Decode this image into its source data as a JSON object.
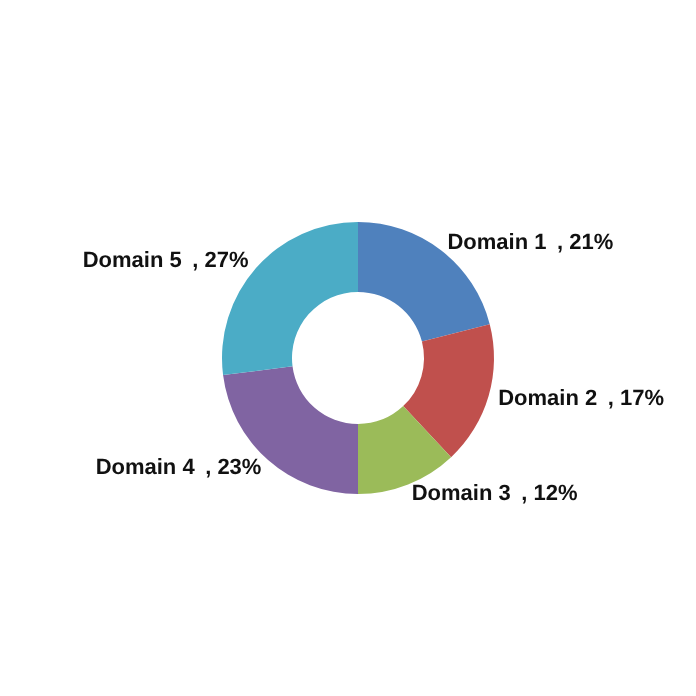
{
  "chart_data": {
    "type": "donut",
    "categories": [
      "Domain 1",
      "Domain 2",
      "Domain 3",
      "Domain 4",
      "Domain 5"
    ],
    "values": [
      21,
      17,
      12,
      23,
      27
    ],
    "colors": [
      "#4f81bd",
      "#c0504d",
      "#9bbb59",
      "#8064a2",
      "#4bacc6"
    ],
    "value_labels": [
      ", 21%",
      ", 17%",
      ", 12%",
      ", 23%",
      ", 27%"
    ]
  }
}
